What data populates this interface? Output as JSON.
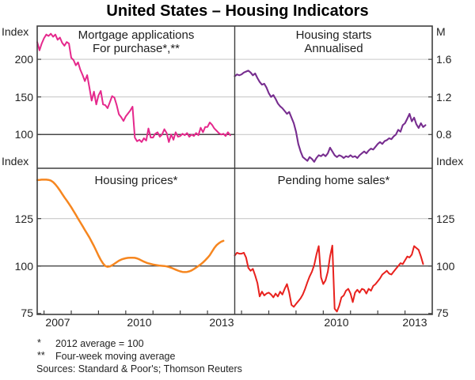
{
  "title": "United States – Housing Indicators",
  "footnotes": {
    "f1_marker": "*",
    "f1_text": "2012 average = 100",
    "f2_marker": "**",
    "f2_text": "Four-week moving average",
    "sources": "Sources: Standard & Poor's; Thomson Reuters"
  },
  "styles": {
    "grid_light": "#c9c9c9",
    "grid_dark": "#474747",
    "border": "#3f3f3f",
    "pink": "#e5288c",
    "purple": "#772d8f",
    "orange": "#f6861f",
    "red": "#e8211d"
  },
  "chart_data": {
    "type": "line",
    "title": "United States – Housing Indicators",
    "xlim": [
      2006.75,
      2014.0
    ],
    "x_unit": "year",
    "x_year_ticks": [
      2007,
      2008,
      2009,
      2010,
      2011,
      2012,
      2013
    ],
    "xlabels_left": [
      {
        "label": "2007"
      },
      {
        "label": "2010"
      },
      {
        "label": "2013"
      }
    ],
    "xlabels_right": [
      {
        "label": "2010"
      },
      {
        "label": "2013"
      }
    ],
    "panels": [
      {
        "id": "mortgage-applications",
        "title": "Mortgage applications",
        "subtitle": "For purchase*,**",
        "unit_label": "Index",
        "axis_side": "left",
        "ylim": [
          55.1,
          244.2
        ],
        "yticks": [
          {
            "v": 200,
            "label": "200"
          },
          {
            "v": 150,
            "label": "150"
          },
          {
            "v": 100,
            "label": "100"
          }
        ],
        "gridlines": [
          {
            "v": 200,
            "style": "light"
          },
          {
            "v": 150,
            "style": "light"
          },
          {
            "v": 100,
            "style": "dark"
          }
        ],
        "series": {
          "name": "Mortgage applications for purchase (index, 2012 average = 100, four-week moving average)",
          "color_key": "pink",
          "stroke_width": 2,
          "x_start": 2006.75,
          "x_step": 0.0833333,
          "values": [
            223,
            212,
            221,
            228,
            233,
            231,
            234,
            230,
            233,
            226,
            229,
            222,
            218,
            223,
            221,
            202,
            199,
            192,
            196,
            186,
            179,
            171,
            179,
            162,
            145,
            157,
            140,
            152,
            158,
            140,
            139,
            135,
            143,
            151,
            149,
            139,
            127,
            123,
            118,
            124,
            128,
            132,
            137,
            96,
            91,
            93,
            90,
            95,
            92,
            108,
            96,
            96,
            101,
            103,
            97,
            100,
            107,
            102,
            90,
            100,
            93,
            103,
            97,
            98,
            101,
            99,
            102,
            97,
            100,
            98,
            102,
            99,
            109,
            103,
            110,
            110,
            116,
            113,
            108,
            105,
            102,
            100,
            101,
            98,
            103,
            99
          ]
        }
      },
      {
        "id": "housing-starts",
        "title": "Housing starts",
        "subtitle": "Annualised",
        "unit_label": "M",
        "axis_side": "right",
        "ylim": [
          0.441,
          1.954
        ],
        "yticks": [
          {
            "v": 1.6,
            "label": "1.6"
          },
          {
            "v": 1.2,
            "label": "1.2"
          },
          {
            "v": 0.8,
            "label": "0.8"
          }
        ],
        "gridlines": [
          {
            "v": 1.6,
            "style": "light"
          },
          {
            "v": 1.2,
            "style": "light"
          },
          {
            "v": 0.8,
            "style": "light"
          }
        ],
        "series": {
          "name": "Housing starts (millions, annualised)",
          "color_key": "purple",
          "stroke_width": 2.1,
          "x_start": 2006.75,
          "x_step": 0.0833333,
          "values": [
            1.42,
            1.44,
            1.43,
            1.44,
            1.46,
            1.47,
            1.48,
            1.46,
            1.43,
            1.45,
            1.4,
            1.36,
            1.33,
            1.34,
            1.3,
            1.24,
            1.2,
            1.22,
            1.18,
            1.13,
            1.1,
            1.08,
            1.05,
            1.02,
            1.04,
            0.98,
            0.92,
            0.83,
            0.7,
            0.62,
            0.56,
            0.54,
            0.52,
            0.56,
            0.54,
            0.51,
            0.55,
            0.58,
            0.57,
            0.59,
            0.57,
            0.6,
            0.66,
            0.62,
            0.58,
            0.56,
            0.58,
            0.57,
            0.55,
            0.57,
            0.56,
            0.58,
            0.56,
            0.57,
            0.55,
            0.58,
            0.6,
            0.62,
            0.6,
            0.63,
            0.65,
            0.64,
            0.67,
            0.7,
            0.72,
            0.7,
            0.73,
            0.74,
            0.76,
            0.75,
            0.78,
            0.8,
            0.85,
            0.83,
            0.9,
            0.92,
            0.97,
            1.02,
            0.94,
            0.98,
            0.91,
            0.87,
            0.92,
            0.88,
            0.9
          ]
        }
      },
      {
        "id": "housing-prices",
        "title": "Housing prices*",
        "subtitle": "",
        "unit_label": "Index",
        "axis_side": "left",
        "ylim": [
          74.5,
          151.5
        ],
        "yticks": [
          {
            "v": 125,
            "label": "125"
          },
          {
            "v": 100,
            "label": "100"
          },
          {
            "v": 75,
            "label": "75"
          }
        ],
        "gridlines": [
          {
            "v": 125,
            "style": "light"
          },
          {
            "v": 100,
            "style": "dark"
          }
        ],
        "series": {
          "name": "Housing prices (index, 2012 average = 100)",
          "color_key": "orange",
          "stroke_width": 2.5,
          "x_start": 2006.75,
          "x_step": 0.0833333,
          "values": [
            145.3,
            145.4,
            145.5,
            145.5,
            145.5,
            145.4,
            145.0,
            144.2,
            143.0,
            141.5,
            139.8,
            138.0,
            136.2,
            134.5,
            132.8,
            131.0,
            129.0,
            127.0,
            125.0,
            123.0,
            121.0,
            119.0,
            117.0,
            115.0,
            112.8,
            110.5,
            108.0,
            105.5,
            103.2,
            101.3,
            100.0,
            99.6,
            99.8,
            100.4,
            101.2,
            102.0,
            102.8,
            103.4,
            103.8,
            104.1,
            104.3,
            104.4,
            104.4,
            104.3,
            104.0,
            103.5,
            102.9,
            102.3,
            101.8,
            101.4,
            101.1,
            100.8,
            100.6,
            100.4,
            100.2,
            100.1,
            100.0,
            99.8,
            99.5,
            99.1,
            98.6,
            98.1,
            97.6,
            97.2,
            96.9,
            96.8,
            96.9,
            97.2,
            97.7,
            98.4,
            99.2,
            100.0,
            100.9,
            101.9,
            103.0,
            104.3,
            105.7,
            107.6,
            109.5,
            111.0,
            112.0,
            112.8,
            113.3
          ]
        }
      },
      {
        "id": "pending-home-sales",
        "title": "Pending home sales*",
        "subtitle": "",
        "unit_label": "Index",
        "axis_side": "right",
        "ylim": [
          74.5,
          151.5
        ],
        "yticks": [
          {
            "v": 125,
            "label": "125"
          },
          {
            "v": 100,
            "label": "100"
          },
          {
            "v": 75,
            "label": "75"
          }
        ],
        "gridlines": [
          {
            "v": 125,
            "style": "light"
          },
          {
            "v": 100,
            "style": "dark"
          }
        ],
        "series": {
          "name": "Pending home sales (index, 2012 average = 100)",
          "color_key": "red",
          "stroke_width": 2,
          "x_start": 2006.75,
          "x_step": 0.0833333,
          "values": [
            105.5,
            107.0,
            106.5,
            106.5,
            107.0,
            104.5,
            99.0,
            97.5,
            98.5,
            95.0,
            91.0,
            84.0,
            86.5,
            84.5,
            85.5,
            86.0,
            85.0,
            83.5,
            85.5,
            84.0,
            86.5,
            85.0,
            88.0,
            90.5,
            86.0,
            79.5,
            78.5,
            80.0,
            81.5,
            83.0,
            85.0,
            88.0,
            91.5,
            94.5,
            97.0,
            100.5,
            106.0,
            110.5,
            94.0,
            90.5,
            92.5,
            97.0,
            105.0,
            110.8,
            77.5,
            76.0,
            79.0,
            83.5,
            84.5,
            87.0,
            88.0,
            85.5,
            81.0,
            86.0,
            87.5,
            86.0,
            88.0,
            87.5,
            85.5,
            88.0,
            87.0,
            89.5,
            90.5,
            92.0,
            93.5,
            95.5,
            96.5,
            97.5,
            96.0,
            95.5,
            97.0,
            98.5,
            100.0,
            101.5,
            101.0,
            103.0,
            105.0,
            104.5,
            106.0,
            110.5,
            109.5,
            108.5,
            105.0,
            101.0
          ]
        }
      }
    ]
  }
}
